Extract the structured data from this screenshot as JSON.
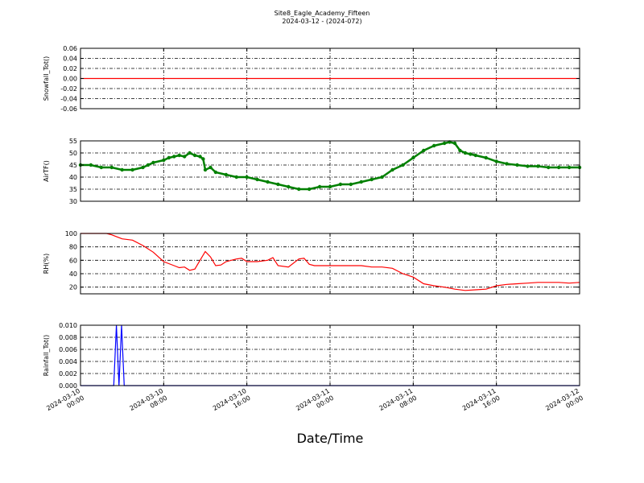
{
  "title": "Site8_Eagle_Academy_Fifteen",
  "subtitle": "2024-03-12 - (2024-072)",
  "xlabel": "Date/Time",
  "x_ticks": [
    "2024-03-10\n00:00",
    "2024-03-10\n08:00",
    "2024-03-10\n16:00",
    "2024-03-11\n00:00",
    "2024-03-11\n08:00",
    "2024-03-11\n16:00",
    "2024-03-12\n00:00"
  ],
  "chart_data": [
    {
      "type": "line",
      "ylabel": "Snowfall_Tot()",
      "ylim": [
        -0.06,
        0.06
      ],
      "yticks": [
        "0.06",
        "0.04",
        "0.02",
        "0.00",
        "-0.02",
        "-0.04",
        "-0.06"
      ],
      "ytick_values": [
        0.06,
        0.04,
        0.02,
        0.0,
        -0.02,
        -0.04,
        -0.06
      ],
      "grid": true,
      "series": [
        {
          "color": "#ff0000",
          "marker": false,
          "x": [
            0,
            48
          ],
          "y": [
            0,
            0
          ]
        }
      ]
    },
    {
      "type": "line",
      "ylabel": "AirTF()",
      "ylim": [
        30,
        55
      ],
      "yticks": [
        "55",
        "50",
        "45",
        "40",
        "35",
        "30"
      ],
      "ytick_values": [
        55,
        50,
        45,
        40,
        35,
        30
      ],
      "grid": true,
      "series": [
        {
          "color": "#008000",
          "marker": true,
          "x": [
            0,
            1,
            2,
            3,
            4,
            5,
            6,
            6.5,
            7,
            8,
            8.5,
            9,
            9.5,
            10,
            10.5,
            11,
            11.5,
            11.8,
            12,
            12.5,
            13,
            14,
            15,
            16,
            17,
            18,
            19,
            20,
            21,
            22,
            23,
            24,
            25,
            26,
            27,
            28,
            29,
            30,
            31,
            32,
            33,
            34,
            35,
            35.5,
            36,
            36.5,
            37,
            37.5,
            38,
            39,
            40,
            41,
            42,
            43,
            44,
            45,
            46,
            47,
            48
          ],
          "y": [
            45,
            45,
            44,
            44,
            43,
            43,
            44,
            45,
            46,
            47,
            48,
            48.5,
            49,
            48.5,
            50,
            49,
            48.5,
            47.5,
            43,
            44,
            42,
            41,
            40,
            40,
            39,
            38,
            37,
            36,
            35,
            35,
            36,
            36,
            37,
            37,
            38,
            39,
            40,
            43,
            45,
            48,
            51,
            53,
            54,
            54.5,
            54,
            51,
            50,
            49.5,
            49,
            48,
            46.5,
            45.5,
            45,
            44.5,
            44.5,
            44,
            44,
            44,
            44
          ]
        }
      ]
    },
    {
      "type": "line",
      "ylabel": "RH(%)",
      "ylim": [
        10,
        100
      ],
      "yticks": [
        "100",
        "80",
        "60",
        "40",
        "20"
      ],
      "ytick_values": [
        100,
        80,
        60,
        40,
        20
      ],
      "grid": true,
      "series": [
        {
          "color": "#ff0000",
          "marker": false,
          "x": [
            0,
            1,
            2,
            2.5,
            3,
            3.5,
            4,
            5,
            6,
            7,
            7.5,
            8,
            9,
            9.5,
            10,
            10.5,
            11,
            11.5,
            12,
            12.5,
            13,
            13.5,
            14,
            14.5,
            15,
            15.5,
            16,
            17,
            18,
            18.5,
            19,
            20,
            21,
            21.5,
            22,
            22.5,
            23,
            24,
            25,
            26,
            27,
            28,
            29,
            30,
            31,
            32,
            33,
            34,
            35,
            36,
            37,
            38,
            39,
            40,
            41,
            42,
            43,
            44,
            45,
            46,
            47,
            48
          ],
          "y": [
            100,
            100,
            100,
            100,
            98,
            95,
            92,
            90,
            82,
            72,
            65,
            58,
            52,
            49,
            50,
            45,
            47,
            60,
            73,
            65,
            52,
            53,
            58,
            60,
            62,
            63,
            58,
            58,
            60,
            64,
            52,
            50,
            62,
            63,
            54,
            52,
            52,
            52,
            52,
            52,
            52,
            50,
            50,
            48,
            40,
            35,
            25,
            22,
            20,
            17,
            15,
            16,
            17,
            22,
            24,
            25,
            26,
            27,
            27,
            27,
            26,
            27
          ]
        }
      ]
    },
    {
      "type": "line",
      "ylabel": "Rainfall_Tot()",
      "ylim": [
        0,
        0.01
      ],
      "yticks": [
        "0.010",
        "0.008",
        "0.006",
        "0.004",
        "0.002",
        "0.000"
      ],
      "ytick_values": [
        0.01,
        0.008,
        0.006,
        0.004,
        0.002,
        0.0
      ],
      "grid": true,
      "series": [
        {
          "color": "#0000ff",
          "marker": false,
          "x": [
            0,
            3.2,
            3.45,
            3.7,
            3.95,
            4.2,
            48
          ],
          "y": [
            0,
            0,
            0.01,
            0,
            0.01,
            0,
            0
          ]
        }
      ]
    }
  ]
}
